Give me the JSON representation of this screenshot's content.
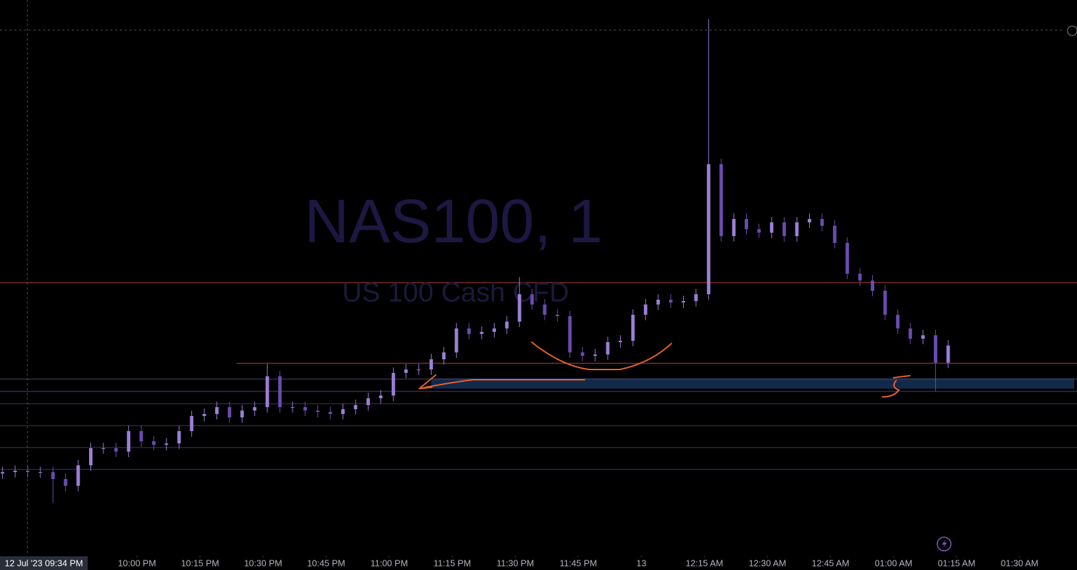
{
  "chart_data": {
    "type": "candlestick",
    "title": "NAS100, 1",
    "subtitle": "US 100 Cash CFD",
    "crosshair_label": "12 Jul '23   09:34 PM",
    "x_axis_unit": "minutes",
    "xlim": [
      27.4,
      283
    ],
    "xticks": [
      {
        "value": 60,
        "label": "10:00 PM"
      },
      {
        "value": 75,
        "label": "10:15 PM"
      },
      {
        "value": 90,
        "label": "10:30 PM"
      },
      {
        "value": 105,
        "label": "10:45 PM"
      },
      {
        "value": 120,
        "label": "11:00 PM"
      },
      {
        "value": 135,
        "label": "11:15 PM"
      },
      {
        "value": 150,
        "label": "11:30 PM"
      },
      {
        "value": 165,
        "label": "11:45 PM"
      },
      {
        "value": 180,
        "label": "13"
      },
      {
        "value": 195,
        "label": "12:15 AM"
      },
      {
        "value": 210,
        "label": "12:30 AM"
      },
      {
        "value": 225,
        "label": "12:45 AM"
      },
      {
        "value": 240,
        "label": "01:00 AM"
      },
      {
        "value": 255,
        "label": "01:15 AM"
      },
      {
        "value": 270,
        "label": "01:30 AM"
      }
    ],
    "ylim": [
      0,
      780
    ],
    "up_color": "#9b7fd6",
    "down_color": "#6a4bb0",
    "x": [
      28,
      31,
      34,
      37,
      40,
      43,
      46,
      49,
      52,
      55,
      58,
      61,
      64,
      67,
      70,
      73,
      76,
      79,
      82,
      85,
      88,
      91,
      94,
      97,
      100,
      103,
      106,
      109,
      112,
      115,
      118,
      121,
      124,
      127,
      130,
      133,
      136,
      139,
      142,
      145,
      148,
      151,
      154,
      157,
      160,
      163,
      166,
      169,
      172,
      175,
      178,
      181,
      184,
      187,
      190,
      193,
      196,
      199,
      202,
      205,
      208,
      211,
      214,
      217,
      220,
      223,
      226,
      229,
      232,
      235,
      238,
      241,
      244,
      247,
      250,
      253
    ],
    "open": [
      88,
      90,
      92,
      90,
      90,
      80,
      70,
      100,
      125,
      125,
      120,
      150,
      135,
      130,
      132,
      150,
      172,
      175,
      185,
      170,
      180,
      185,
      230,
      185,
      185,
      180,
      178,
      175,
      182,
      188,
      198,
      202,
      235,
      240,
      240,
      255,
      265,
      300,
      292,
      295,
      300,
      310,
      350,
      335,
      320,
      318,
      265,
      260,
      262,
      280,
      282,
      320,
      335,
      342,
      338,
      340,
      350,
      540,
      435,
      460,
      445,
      440,
      455,
      435,
      455,
      460,
      450,
      425,
      380,
      370,
      355,
      320,
      300,
      285,
      290,
      250
    ],
    "high": [
      98,
      100,
      100,
      98,
      98,
      88,
      108,
      133,
      133,
      133,
      158,
      158,
      143,
      140,
      158,
      180,
      183,
      193,
      193,
      188,
      193,
      248,
      238,
      193,
      193,
      188,
      186,
      190,
      196,
      206,
      210,
      243,
      248,
      248,
      263,
      273,
      308,
      308,
      303,
      308,
      318,
      375,
      358,
      343,
      328,
      326,
      273,
      270,
      288,
      290,
      328,
      343,
      350,
      350,
      348,
      358,
      752,
      548,
      468,
      468,
      453,
      463,
      463,
      463,
      468,
      468,
      458,
      433,
      388,
      378,
      363,
      328,
      308,
      298,
      298,
      283
    ],
    "low": [
      80,
      82,
      82,
      82,
      45,
      62,
      62,
      92,
      117,
      112,
      112,
      127,
      122,
      122,
      124,
      142,
      164,
      167,
      162,
      162,
      172,
      177,
      177,
      177,
      172,
      170,
      167,
      167,
      174,
      180,
      190,
      194,
      227,
      232,
      232,
      247,
      257,
      284,
      284,
      287,
      292,
      302,
      327,
      312,
      310,
      257,
      252,
      252,
      254,
      272,
      274,
      312,
      327,
      330,
      330,
      332,
      342,
      427,
      427,
      437,
      432,
      432,
      427,
      427,
      447,
      442,
      417,
      372,
      362,
      347,
      312,
      292,
      277,
      277,
      208,
      242
    ],
    "close": [
      90,
      92,
      90,
      90,
      80,
      70,
      100,
      125,
      125,
      120,
      150,
      135,
      130,
      132,
      150,
      172,
      175,
      185,
      170,
      180,
      185,
      230,
      185,
      185,
      180,
      178,
      175,
      182,
      188,
      198,
      202,
      235,
      240,
      240,
      255,
      265,
      300,
      292,
      295,
      300,
      310,
      350,
      335,
      320,
      318,
      265,
      260,
      262,
      280,
      282,
      320,
      335,
      342,
      338,
      340,
      350,
      540,
      435,
      460,
      445,
      440,
      455,
      435,
      455,
      460,
      450,
      425,
      380,
      370,
      355,
      320,
      300,
      285,
      290,
      250,
      275
    ],
    "levels": [
      {
        "value": 367,
        "color": "#b5493a"
      },
      {
        "value": 249,
        "color": "#b5493a"
      },
      {
        "value": 226,
        "color": "#4a4670"
      },
      {
        "value": 208,
        "color": "#4a4670"
      },
      {
        "value": 190,
        "color": "#3e3a66"
      },
      {
        "value": 158,
        "color": "#3e3a66"
      },
      {
        "value": 126,
        "color": "#3e3a66"
      },
      {
        "value": 94,
        "color": "#3e3a66"
      }
    ],
    "zone": {
      "low": 212,
      "high": 227,
      "color": "#13294a"
    }
  }
}
